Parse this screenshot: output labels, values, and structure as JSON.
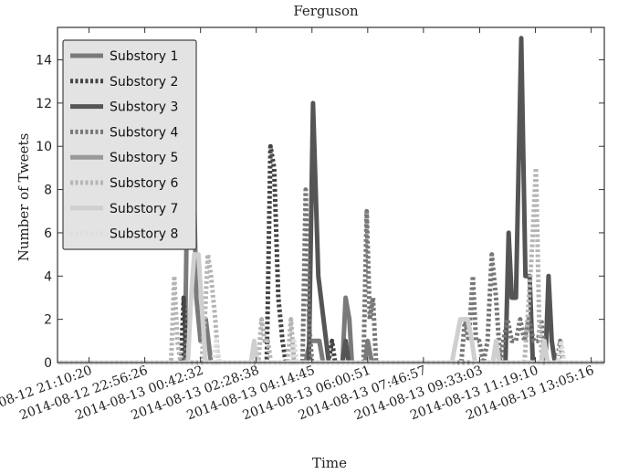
{
  "chart_data": {
    "type": "line",
    "title": "Ferguson",
    "xlabel": "Time",
    "ylabel": "Number of Tweets",
    "ylim": [
      0,
      15.5
    ],
    "xlim": [
      "2014-08-12 20:10",
      "2014-08-13 13:30"
    ],
    "grid": false,
    "legend_position": "top-left",
    "x_tick_labels": [
      "2014-08-12 21:10:20",
      "2014-08-12 22:56:26",
      "2014-08-13 00:42:32",
      "2014-08-13 02:28:38",
      "2014-08-13 04:14:45",
      "2014-08-13 06:00:51",
      "2014-08-13 07:46:57",
      "2014-08-13 09:33:03",
      "2014-08-13 11:19:10",
      "2014-08-13 13:05:16"
    ],
    "y_ticks": [
      0,
      2,
      4,
      6,
      8,
      10,
      12,
      14
    ],
    "series": [
      {
        "name": "Substory 1",
        "color": "#7a7a7a",
        "dash": "solid",
        "points": [
          [
            "2014-08-12 20:10",
            0
          ],
          [
            "2014-08-13 00:12",
            0
          ],
          [
            "2014-08-13 00:18",
            10
          ],
          [
            "2014-08-13 00:26",
            12
          ],
          [
            "2014-08-13 00:34",
            3
          ],
          [
            "2014-08-13 00:42",
            1
          ],
          [
            "2014-08-13 00:52",
            2
          ],
          [
            "2014-08-13 01:02",
            0
          ],
          [
            "2014-08-13 04:02",
            0
          ],
          [
            "2014-08-13 04:10",
            1
          ],
          [
            "2014-08-13 04:28",
            1
          ],
          [
            "2014-08-13 04:35",
            0
          ],
          [
            "2014-08-13 05:12",
            0
          ],
          [
            "2014-08-13 05:18",
            3
          ],
          [
            "2014-08-13 05:25",
            2
          ],
          [
            "2014-08-13 05:30",
            0
          ],
          [
            "2014-08-13 05:55",
            0
          ],
          [
            "2014-08-13 06:00",
            1
          ],
          [
            "2014-08-13 06:08",
            0
          ],
          [
            "2014-08-13 13:30",
            0
          ]
        ]
      },
      {
        "name": "Substory 2",
        "color": "#444444",
        "dash": "dotted",
        "points": [
          [
            "2014-08-12 20:10",
            0
          ],
          [
            "2014-08-13 00:05",
            0
          ],
          [
            "2014-08-13 00:10",
            3
          ],
          [
            "2014-08-13 00:16",
            0
          ],
          [
            "2014-08-13 02:48",
            0
          ],
          [
            "2014-08-13 02:55",
            10
          ],
          [
            "2014-08-13 03:02",
            9
          ],
          [
            "2014-08-13 03:10",
            3
          ],
          [
            "2014-08-13 03:18",
            1
          ],
          [
            "2014-08-13 03:24",
            0
          ],
          [
            "2014-08-13 04:45",
            0
          ],
          [
            "2014-08-13 04:52",
            1
          ],
          [
            "2014-08-13 04:58",
            0
          ],
          [
            "2014-08-13 13:30",
            0
          ]
        ]
      },
      {
        "name": "Substory 3",
        "color": "#555555",
        "dash": "solid",
        "points": [
          [
            "2014-08-12 20:10",
            0
          ],
          [
            "2014-08-13 04:08",
            0
          ],
          [
            "2014-08-13 04:16",
            12
          ],
          [
            "2014-08-13 04:26",
            4
          ],
          [
            "2014-08-13 04:36",
            2
          ],
          [
            "2014-08-13 04:46",
            0
          ],
          [
            "2014-08-13 05:12",
            0
          ],
          [
            "2014-08-13 05:18",
            1
          ],
          [
            "2014-08-13 05:24",
            0
          ],
          [
            "2014-08-13 10:22",
            0
          ],
          [
            "2014-08-13 10:28",
            6
          ],
          [
            "2014-08-13 10:34",
            3
          ],
          [
            "2014-08-13 10:42",
            3
          ],
          [
            "2014-08-13 10:52",
            15
          ],
          [
            "2014-08-13 11:00",
            4
          ],
          [
            "2014-08-13 11:08",
            4
          ],
          [
            "2014-08-13 11:14",
            0
          ],
          [
            "2014-08-13 11:38",
            0
          ],
          [
            "2014-08-13 11:44",
            4
          ],
          [
            "2014-08-13 11:50",
            1
          ],
          [
            "2014-08-13 11:56",
            0
          ],
          [
            "2014-08-13 13:30",
            0
          ]
        ]
      },
      {
        "name": "Substory 4",
        "color": "#777777",
        "dash": "dotted",
        "points": [
          [
            "2014-08-12 20:10",
            0
          ],
          [
            "2014-08-13 03:56",
            0
          ],
          [
            "2014-08-13 04:02",
            8
          ],
          [
            "2014-08-13 04:08",
            2
          ],
          [
            "2014-08-13 04:14",
            0
          ],
          [
            "2014-08-13 05:52",
            0
          ],
          [
            "2014-08-13 05:58",
            7
          ],
          [
            "2014-08-13 06:04",
            2
          ],
          [
            "2014-08-13 06:10",
            3
          ],
          [
            "2014-08-13 06:16",
            0
          ],
          [
            "2014-08-13 08:58",
            0
          ],
          [
            "2014-08-13 09:05",
            2
          ],
          [
            "2014-08-13 09:12",
            1
          ],
          [
            "2014-08-13 09:20",
            4
          ],
          [
            "2014-08-13 09:26",
            1
          ],
          [
            "2014-08-13 09:32",
            1
          ],
          [
            "2014-08-13 09:40",
            0
          ],
          [
            "2014-08-13 09:48",
            1
          ],
          [
            "2014-08-13 09:56",
            5
          ],
          [
            "2014-08-13 10:04",
            3
          ],
          [
            "2014-08-13 10:12",
            0
          ],
          [
            "2014-08-13 10:18",
            1
          ],
          [
            "2014-08-13 10:26",
            2
          ],
          [
            "2014-08-13 10:34",
            1
          ],
          [
            "2014-08-13 10:42",
            1
          ],
          [
            "2014-08-13 10:50",
            2
          ],
          [
            "2014-08-13 10:58",
            1
          ],
          [
            "2014-08-13 11:06",
            2
          ],
          [
            "2014-08-13 11:16",
            1
          ],
          [
            "2014-08-13 11:24",
            1
          ],
          [
            "2014-08-13 11:30",
            2
          ],
          [
            "2014-08-13 11:38",
            0
          ],
          [
            "2014-08-13 12:00",
            0
          ],
          [
            "2014-08-13 12:06",
            1
          ],
          [
            "2014-08-13 12:12",
            0
          ],
          [
            "2014-08-13 13:30",
            0
          ]
        ]
      },
      {
        "name": "Substory 5",
        "color": "#9a9a9a",
        "dash": "solid",
        "points": [
          [
            "2014-08-12 20:10",
            0
          ],
          [
            "2014-08-13 13:30",
            0
          ]
        ]
      },
      {
        "name": "Substory 6",
        "color": "#b5b5b5",
        "dash": "dotted",
        "points": [
          [
            "2014-08-12 20:10",
            0
          ],
          [
            "2014-08-12 23:46",
            0
          ],
          [
            "2014-08-12 23:52",
            4
          ],
          [
            "2014-08-12 23:58",
            1
          ],
          [
            "2014-08-13 00:04",
            0
          ],
          [
            "2014-08-13 00:44",
            0
          ],
          [
            "2014-08-13 00:50",
            2
          ],
          [
            "2014-08-13 00:56",
            5
          ],
          [
            "2014-08-13 01:02",
            4
          ],
          [
            "2014-08-13 01:10",
            2
          ],
          [
            "2014-08-13 01:16",
            0
          ],
          [
            "2014-08-13 02:32",
            0
          ],
          [
            "2014-08-13 02:38",
            2
          ],
          [
            "2014-08-13 02:44",
            1
          ],
          [
            "2014-08-13 02:50",
            1
          ],
          [
            "2014-08-13 02:56",
            0
          ],
          [
            "2014-08-13 03:28",
            0
          ],
          [
            "2014-08-13 03:34",
            2
          ],
          [
            "2014-08-13 03:40",
            0
          ],
          [
            "2014-08-13 10:58",
            0
          ],
          [
            "2014-08-13 11:04",
            2
          ],
          [
            "2014-08-13 11:12",
            5
          ],
          [
            "2014-08-13 11:20",
            9
          ],
          [
            "2014-08-13 11:26",
            2
          ],
          [
            "2014-08-13 11:32",
            0
          ],
          [
            "2014-08-13 13:30",
            0
          ]
        ]
      },
      {
        "name": "Substory 7",
        "color": "#cfcfcf",
        "dash": "solid",
        "points": [
          [
            "2014-08-12 20:10",
            0
          ],
          [
            "2014-08-13 00:18",
            0
          ],
          [
            "2014-08-13 00:24",
            3
          ],
          [
            "2014-08-13 00:30",
            5
          ],
          [
            "2014-08-13 00:38",
            5
          ],
          [
            "2014-08-13 00:46",
            2
          ],
          [
            "2014-08-13 00:52",
            0
          ],
          [
            "2014-08-13 02:18",
            0
          ],
          [
            "2014-08-13 02:24",
            1
          ],
          [
            "2014-08-13 02:30",
            0
          ],
          [
            "2014-08-13 08:40",
            0
          ],
          [
            "2014-08-13 08:48",
            1
          ],
          [
            "2014-08-13 08:56",
            2
          ],
          [
            "2014-08-13 09:10",
            2
          ],
          [
            "2014-08-13 09:18",
            1
          ],
          [
            "2014-08-13 09:24",
            0
          ],
          [
            "2014-08-13 09:58",
            0
          ],
          [
            "2014-08-13 10:04",
            1
          ],
          [
            "2014-08-13 10:10",
            0
          ],
          [
            "2014-08-13 11:30",
            0
          ],
          [
            "2014-08-13 11:36",
            1
          ],
          [
            "2014-08-13 11:42",
            0
          ],
          [
            "2014-08-13 13:30",
            0
          ]
        ]
      },
      {
        "name": "Substory 8",
        "color": "#dedede",
        "dash": "dotted",
        "points": [
          [
            "2014-08-12 20:10",
            0
          ],
          [
            "2014-08-13 01:06",
            0
          ],
          [
            "2014-08-13 01:12",
            1
          ],
          [
            "2014-08-13 01:18",
            0
          ],
          [
            "2014-08-13 03:34",
            0
          ],
          [
            "2014-08-13 03:40",
            1
          ],
          [
            "2014-08-13 03:46",
            0
          ],
          [
            "2014-08-13 12:02",
            0
          ],
          [
            "2014-08-13 12:08",
            1
          ],
          [
            "2014-08-13 12:14",
            0
          ],
          [
            "2014-08-13 13:30",
            0
          ]
        ]
      }
    ]
  }
}
